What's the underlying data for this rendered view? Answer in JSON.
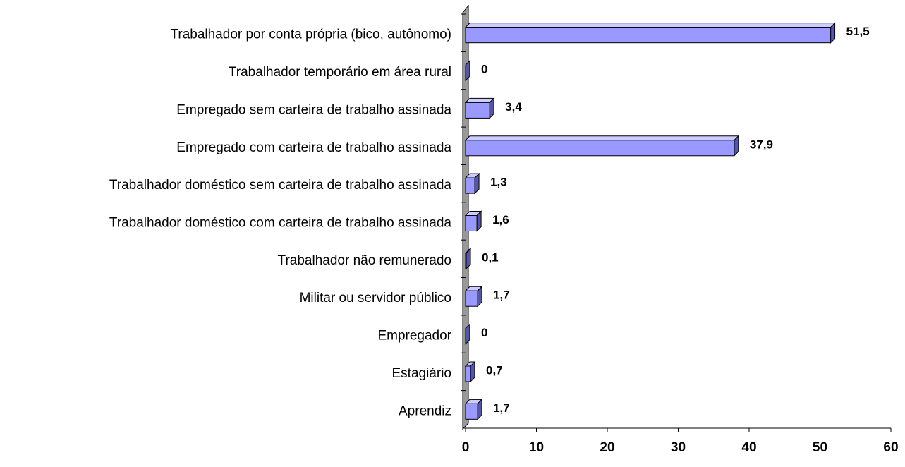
{
  "chart_data": {
    "type": "bar",
    "orientation": "horizontal",
    "categories": [
      "Trabalhador por conta própria (bico, autônomo)",
      "Trabalhador temporário em área rural",
      "Empregado sem carteira de trabalho assinada",
      "Empregado com carteira de trabalho assinada",
      "Trabalhador doméstico sem carteira de trabalho assinada",
      "Trabalhador doméstico com carteira de trabalho assinada",
      "Trabalhador não remunerado",
      "Militar ou servidor público",
      "Empregador",
      "Estagiário",
      "Aprendiz"
    ],
    "values": [
      51.5,
      0,
      3.4,
      37.9,
      1.3,
      1.6,
      0.1,
      1.7,
      0,
      0.7,
      1.7
    ],
    "value_labels": [
      "51,5",
      "0",
      "3,4",
      "37,9",
      "1,3",
      "1,6",
      "0,1",
      "1,7",
      "0",
      "0,7",
      "1,7"
    ],
    "color": "#9999ff",
    "xlim": [
      0,
      60
    ],
    "xticks": [
      0,
      10,
      20,
      30,
      40,
      50,
      60
    ]
  }
}
